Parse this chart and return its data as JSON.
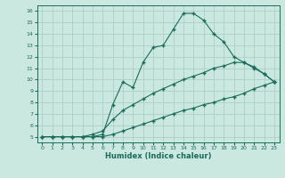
{
  "xlabel": "Humidex (Indice chaleur)",
  "bg_color": "#cbe8e0",
  "line_color": "#1a6b5a",
  "grid_color": "#aacfc8",
  "ylim": [
    4.5,
    16.5
  ],
  "xlim": [
    -0.5,
    23.5
  ],
  "yticks": [
    5,
    6,
    7,
    8,
    9,
    10,
    11,
    12,
    13,
    14,
    15,
    16
  ],
  "xticks": [
    0,
    1,
    2,
    3,
    4,
    5,
    6,
    7,
    8,
    9,
    10,
    11,
    12,
    13,
    14,
    15,
    16,
    17,
    18,
    19,
    20,
    21,
    22,
    23
  ],
  "series": [
    {
      "x": [
        0,
        1,
        2,
        3,
        4,
        5,
        6,
        7,
        8,
        9,
        10,
        11,
        12,
        13,
        14,
        15,
        16,
        17,
        18,
        19,
        20,
        21,
        22,
        23
      ],
      "y": [
        5.0,
        5.0,
        5.0,
        5.0,
        5.0,
        5.0,
        5.2,
        7.8,
        9.8,
        9.3,
        11.5,
        12.8,
        13.0,
        14.4,
        15.8,
        15.8,
        15.2,
        14.0,
        13.3,
        12.0,
        11.5,
        11.1,
        10.5,
        9.8
      ]
    },
    {
      "x": [
        0,
        1,
        2,
        3,
        4,
        5,
        6,
        7,
        8,
        9,
        10,
        11,
        12,
        13,
        14,
        15,
        16,
        17,
        18,
        19,
        20,
        21,
        22,
        23
      ],
      "y": [
        5.0,
        5.0,
        5.0,
        5.0,
        5.0,
        5.2,
        5.5,
        6.5,
        7.3,
        7.8,
        8.3,
        8.8,
        9.2,
        9.6,
        10.0,
        10.3,
        10.6,
        11.0,
        11.2,
        11.5,
        11.5,
        11.0,
        10.5,
        9.8
      ]
    },
    {
      "x": [
        0,
        1,
        2,
        3,
        4,
        5,
        6,
        7,
        8,
        9,
        10,
        11,
        12,
        13,
        14,
        15,
        16,
        17,
        18,
        19,
        20,
        21,
        22,
        23
      ],
      "y": [
        5.0,
        5.0,
        5.0,
        5.0,
        5.0,
        5.0,
        5.0,
        5.2,
        5.5,
        5.8,
        6.1,
        6.4,
        6.7,
        7.0,
        7.3,
        7.5,
        7.8,
        8.0,
        8.3,
        8.5,
        8.8,
        9.2,
        9.5,
        9.8
      ]
    }
  ]
}
